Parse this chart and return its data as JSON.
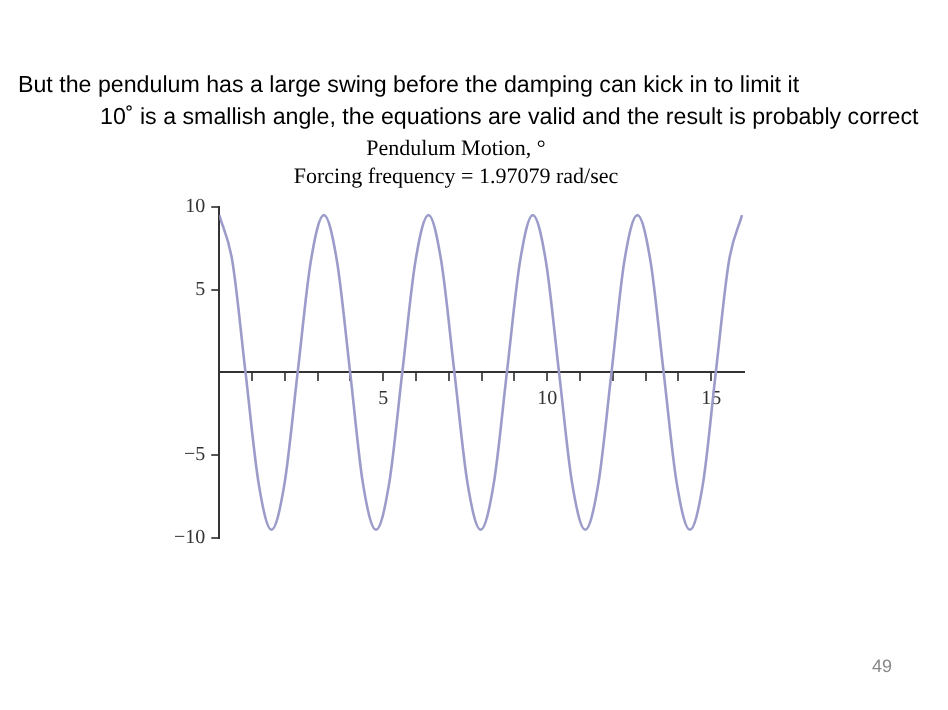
{
  "chart_data": {
    "type": "line",
    "title": "Pendulum Motion, °",
    "subtitle": "Forcing frequency = 1.97079 rad/sec",
    "annotations": [
      "But the pendulum has a large swing before the damping can kick in to limit it",
      "10˚   is a smallish angle, the equations are valid and the result is probably correct",
      "49"
    ],
    "x": [
      0,
      0.4,
      0.8,
      1.2,
      1.59,
      1.99,
      2.39,
      2.79,
      3.19,
      3.59,
      3.99,
      4.38,
      4.78,
      5.18,
      5.58,
      5.98,
      6.38,
      6.77,
      7.17,
      7.57,
      7.97,
      8.37,
      8.77,
      9.17,
      9.56,
      9.96,
      10.36,
      10.76,
      11.16,
      11.56,
      11.96,
      12.35,
      12.75,
      13.15,
      13.55,
      13.95,
      14.35,
      14.75,
      15.14,
      15.54,
      15.94
    ],
    "series": [
      {
        "color": "#9c9cca",
        "values": [
          9.5,
          6.7,
          0,
          -6.7,
          -9.5,
          -6.7,
          0,
          6.7,
          9.5,
          6.7,
          0,
          -6.7,
          -9.5,
          -6.7,
          0,
          6.7,
          9.5,
          6.7,
          0,
          -6.7,
          -9.5,
          -6.7,
          0,
          6.7,
          9.5,
          6.7,
          0,
          -6.7,
          -9.5,
          -6.7,
          0,
          6.7,
          9.5,
          6.7,
          0,
          -6.7,
          -9.5,
          -6.7,
          0,
          6.7,
          9.5
        ]
      }
    ],
    "xlim": [
      0,
      16
    ],
    "xticks": [
      {
        "value": 1,
        "label": null
      },
      {
        "value": 2,
        "label": null
      },
      {
        "value": 3,
        "label": null
      },
      {
        "value": 4,
        "label": null
      },
      5,
      {
        "value": 6,
        "label": null
      },
      {
        "value": 7,
        "label": null
      },
      {
        "value": 8,
        "label": null
      },
      {
        "value": 9,
        "label": null
      },
      10,
      {
        "value": 11,
        "label": null
      },
      {
        "value": 12,
        "label": null
      },
      {
        "value": 13,
        "label": null
      },
      {
        "value": 14,
        "label": null
      },
      15
    ],
    "ylim": [
      -10,
      10
    ],
    "yticks": [
      {
        "value": -10,
        "label": "−10"
      },
      {
        "value": -5,
        "label": "−5"
      },
      5,
      10
    ],
    "grid": false,
    "legend": false,
    "marker": "none",
    "line_style": "solid"
  }
}
